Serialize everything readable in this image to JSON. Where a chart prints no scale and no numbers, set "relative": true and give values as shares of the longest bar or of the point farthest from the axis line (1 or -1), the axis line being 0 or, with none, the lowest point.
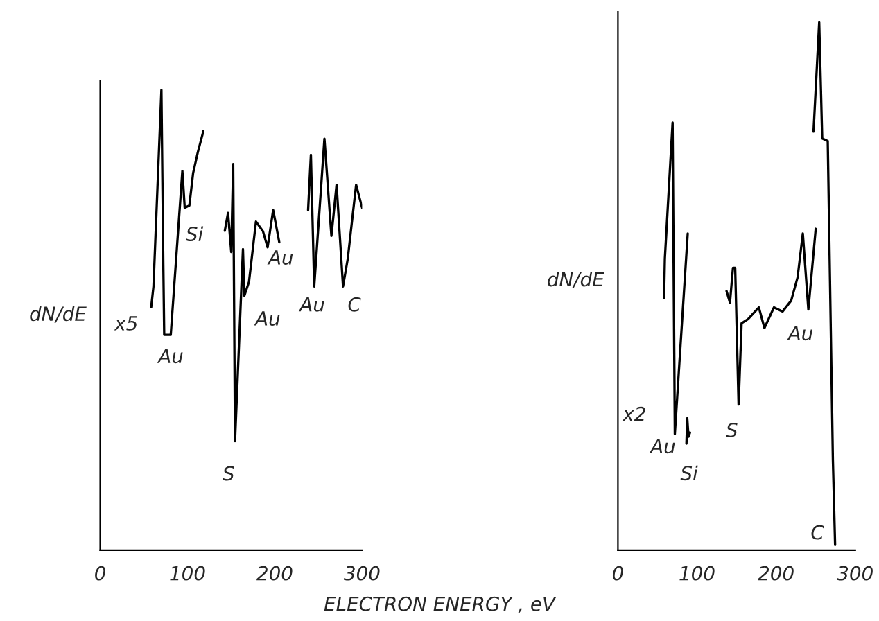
{
  "chart_data": [
    {
      "type": "line",
      "relative": true,
      "xlabel": "ELECTRON ENERGY , eV",
      "ylabel": "dN/dE",
      "xlim": [
        0,
        300
      ],
      "xticks": [
        0,
        100,
        200,
        300
      ],
      "series": [
        {
          "color": "#000000",
          "x": [
            58.4,
            61,
            70.1,
            72.3,
            73.3,
            80.8,
            94.1,
            96.8,
            102.1,
            106.4,
            111.7,
            118.1,
            130,
            142.7,
            146.4,
            150.1,
            152.3,
            154.4,
            163.5,
            165.1,
            170.4,
            178.4,
            186.4,
            191.7,
            198.1,
            205.1,
            220,
            238.1,
            241.3,
            245.1,
            256.8,
            264.8,
            270.7,
            278.1,
            283.5,
            293.1,
            300
          ],
          "values": [
            0.528,
            0.573,
            1.0,
            0.618,
            0.468,
            0.468,
            0.824,
            0.744,
            0.749,
            0.819,
            0.864,
            0.91,
            null,
            0.694,
            0.733,
            0.648,
            0.839,
            0.237,
            0.654,
            0.553,
            0.583,
            0.714,
            0.693,
            0.658,
            0.739,
            0.669,
            null,
            0.739,
            0.859,
            0.573,
            0.894,
            0.683,
            0.794,
            0.573,
            0.633,
            0.794,
            0.744
          ]
        }
      ],
      "annotations": [
        "x5",
        "Au",
        "Si",
        "S",
        "Au",
        "Au",
        "Au",
        "C"
      ]
    },
    {
      "type": "line",
      "relative": true,
      "ylabel": "dN/dE",
      "xlim": [
        0,
        300
      ],
      "xticks": [
        0,
        100,
        200,
        300
      ],
      "series": [
        {
          "color": "#000000",
          "x": [
            58.3,
            59.3,
            69.1,
            71.9,
            88.2,
            114,
            137.3,
            141.6,
            145.4,
            148.2,
            152.5,
            156.3,
            164.5,
            178.1,
            185.2,
            197.2,
            208,
            219,
            227.1,
            233.7,
            240.7,
            250,
            248.6,
            247.2,
            254.4,
            258.2,
            265.2,
            271.7,
            274.5
          ],
          "values": [
            0.478,
            0.552,
            0.81,
            0.22,
            0.6,
            null,
            0.491,
            0.469,
            0.535,
            0.535,
            0.276,
            0.43,
            0.438,
            0.46,
            0.421,
            0.46,
            0.452,
            0.473,
            0.517,
            0.6,
            0.456,
            0.609,
            null,
            0.793,
            1.0,
            0.78,
            0.775,
            0.171,
            0.01
          ]
        },
        {
          "color": "#000000",
          "x": [
            86.6,
            87.6,
            89.2,
            91.1
          ],
          "values": [
            0.202,
            0.25,
            0.215,
            0.223
          ]
        }
      ],
      "annotations": [
        "x2",
        "Au",
        "Si",
        "S",
        "Au",
        "C"
      ]
    }
  ]
}
